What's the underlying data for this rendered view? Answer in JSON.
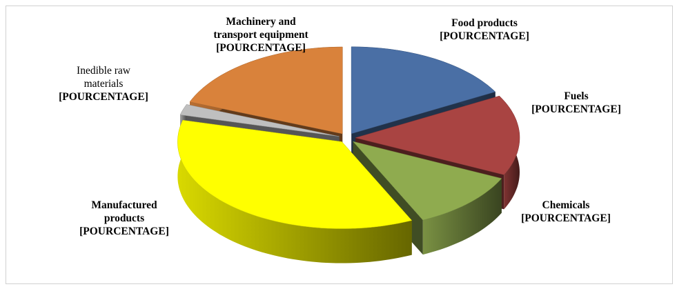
{
  "chart_data": {
    "type": "pie",
    "categories": [
      "Food products",
      "Fuels",
      "Chemicals",
      "Manufactured products",
      "Inedible raw materials",
      "Machinery and transport equipment"
    ],
    "values": [
      17,
      15,
      11,
      36,
      2,
      19
    ],
    "value_labels": [
      "[POURCENTAGE]",
      "[POURCENTAGE]",
      "[POURCENTAGE]",
      "[POURCENTAGE]",
      "[POURCENTAGE]",
      "[POURCENTAGE]"
    ],
    "colors": [
      "#4a6fa5",
      "#a94442",
      "#8fab4f",
      "#ffff00",
      "#bfbfbf",
      "#d9823b"
    ]
  }
}
